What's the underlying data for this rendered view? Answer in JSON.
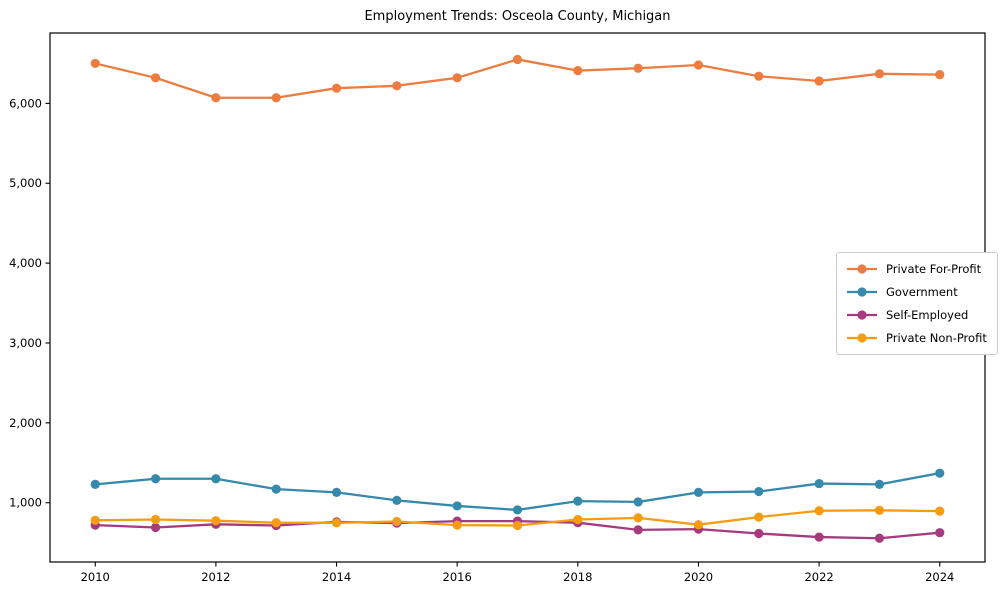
{
  "window": {
    "background": "#ffffff"
  },
  "chart_data": {
    "type": "line",
    "title": "Employment Trends: Osceola County, Michigan",
    "xlabel": "",
    "ylabel": "",
    "x": [
      2010,
      2011,
      2012,
      2013,
      2014,
      2015,
      2016,
      2017,
      2018,
      2019,
      2020,
      2021,
      2022,
      2023,
      2024
    ],
    "x_ticks": [
      2010,
      2012,
      2014,
      2016,
      2018,
      2020,
      2022,
      2024
    ],
    "x_tick_labels": [
      "2010",
      "2012",
      "2014",
      "2016",
      "2018",
      "2020",
      "2022",
      "2024"
    ],
    "y_ticks": [
      1000,
      2000,
      3000,
      4000,
      5000,
      6000
    ],
    "y_tick_labels": [
      "1,000",
      "2,000",
      "3,000",
      "4,000",
      "5,000",
      "6,000"
    ],
    "xlim": [
      2009.25,
      2024.75
    ],
    "ylim": [
      258,
      6881
    ],
    "grid": false,
    "legend_position": "center right",
    "series": [
      {
        "name": "Private For-Profit",
        "color": "#ec7c3f",
        "values": [
          6500,
          6320,
          6070,
          6070,
          6190,
          6220,
          6320,
          6550,
          6410,
          6440,
          6480,
          6340,
          6280,
          6370,
          6360
        ]
      },
      {
        "name": "Government",
        "color": "#3589ab",
        "values": [
          1230,
          1300,
          1300,
          1170,
          1130,
          1030,
          960,
          910,
          1020,
          1010,
          1130,
          1140,
          1240,
          1230,
          1370
        ]
      },
      {
        "name": "Self-Employed",
        "color": "#a63a7f",
        "values": [
          720,
          690,
          730,
          715,
          760,
          745,
          770,
          770,
          750,
          660,
          670,
          615,
          570,
          555,
          625
        ]
      },
      {
        "name": "Private Non-Profit",
        "color": "#f59c12",
        "values": [
          780,
          790,
          775,
          750,
          748,
          765,
          720,
          715,
          790,
          810,
          725,
          820,
          900,
          905,
          895
        ]
      }
    ]
  }
}
